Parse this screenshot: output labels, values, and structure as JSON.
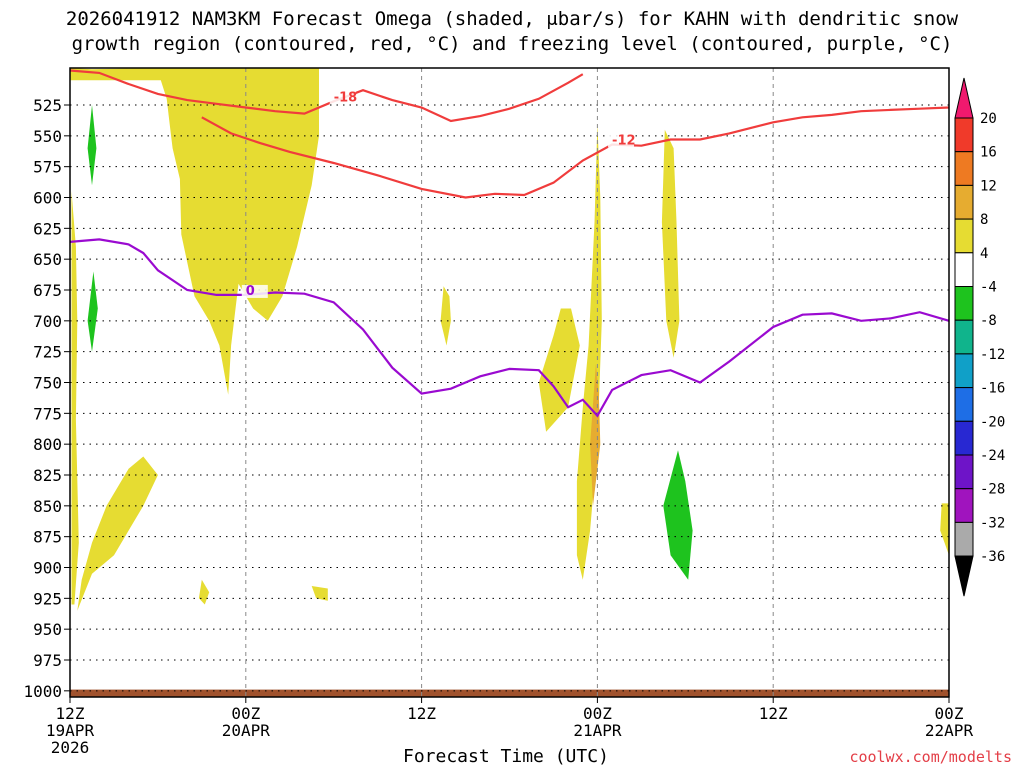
{
  "title_line1": "2026041912 NAM3KM Forecast Omega (shaded, μbar/s) for KAHN with dendritic snow",
  "title_line2": "growth region (contoured, red, °C) and freezing level (contoured, purple, °C)",
  "credit": "coolwx.com/modelts",
  "chart_data": {
    "type": "heatmap",
    "title": "2026041912 NAM3KM Forecast Omega (shaded, μbar/s) for KAHN with dendritic snow growth region (contoured, red, °C) and freezing level (contoured, purple, °C)",
    "xlabel": "Forecast Time (UTC)",
    "ylabel": "",
    "x_range_hours": [
      0,
      60
    ],
    "y_range_hpa": [
      1005,
      495
    ],
    "y_scale": "linear",
    "grid": true,
    "x_ticks": [
      {
        "hour": 0,
        "lines": [
          "12Z",
          "19APR",
          "2026"
        ]
      },
      {
        "hour": 12,
        "lines": [
          "00Z",
          "20APR"
        ]
      },
      {
        "hour": 24,
        "lines": [
          "12Z"
        ]
      },
      {
        "hour": 36,
        "lines": [
          "00Z",
          "21APR"
        ]
      },
      {
        "hour": 48,
        "lines": [
          "12Z"
        ]
      },
      {
        "hour": 60,
        "lines": [
          "00Z",
          "22APR"
        ]
      }
    ],
    "y_ticks": [
      "525",
      "550",
      "575",
      "600",
      "625",
      "650",
      "675",
      "700",
      "725",
      "750",
      "775",
      "800",
      "825",
      "850",
      "875",
      "900",
      "925",
      "950",
      "975",
      "1000"
    ],
    "colorbar": {
      "labels": [
        "20",
        "16",
        "12",
        "8",
        "4",
        "-4",
        "-8",
        "-12",
        "-16",
        "-20",
        "-24",
        "-28",
        "-32",
        "-36"
      ],
      "colors": [
        "#f0196e",
        "#f03a2a",
        "#ee7a22",
        "#e6ac30",
        "#e6dc32",
        "#ffffff",
        "#1ec31e",
        "#10b48c",
        "#10a0c8",
        "#1e6ee6",
        "#2828d2",
        "#6e14c8",
        "#a014be",
        "#aaaaaa",
        "#000000"
      ]
    },
    "omega_colors": {
      "4_to_8": "#e6dc32",
      "8_to_12": "#e6ac30",
      "12_to_16": "#ee7a22",
      "-8_to_-4": "#1ec31e",
      "terrain": "#a0522d"
    },
    "contours": [
      {
        "level": "-18",
        "color": "#f03c3c",
        "label": "-18",
        "points": [
          [
            0,
            497
          ],
          [
            2,
            499
          ],
          [
            4,
            508
          ],
          [
            6,
            516
          ],
          [
            8,
            521
          ],
          [
            10,
            524
          ],
          [
            12,
            527
          ],
          [
            14,
            530
          ],
          [
            16,
            532
          ],
          [
            18,
            522
          ],
          [
            20,
            513
          ],
          [
            22,
            521
          ],
          [
            24,
            527
          ],
          [
            26,
            538
          ],
          [
            28,
            534
          ],
          [
            30,
            528
          ],
          [
            32,
            520
          ],
          [
            34,
            507
          ],
          [
            35,
            500
          ]
        ]
      },
      {
        "level": "-12",
        "color": "#f03c3c",
        "label": "-12",
        "points": [
          [
            9,
            535
          ],
          [
            11,
            548
          ],
          [
            13,
            556
          ],
          [
            15,
            563
          ],
          [
            18,
            572
          ],
          [
            21,
            582
          ],
          [
            24,
            593
          ],
          [
            27,
            600
          ],
          [
            29,
            597
          ],
          [
            31,
            598
          ],
          [
            33,
            588
          ],
          [
            35,
            570
          ],
          [
            37,
            557
          ],
          [
            39,
            558
          ],
          [
            41,
            553
          ],
          [
            43,
            553
          ],
          [
            45,
            548
          ],
          [
            48,
            539
          ],
          [
            50,
            535
          ],
          [
            52,
            533
          ],
          [
            54,
            530
          ],
          [
            56,
            529
          ],
          [
            58,
            528
          ],
          [
            60,
            527
          ]
        ]
      },
      {
        "level": "0",
        "color": "#9a0ad0",
        "label": "0",
        "points": [
          [
            0,
            636
          ],
          [
            2,
            634
          ],
          [
            4,
            638
          ],
          [
            5,
            645
          ],
          [
            6,
            659
          ],
          [
            8,
            675
          ],
          [
            10,
            679
          ],
          [
            12,
            679
          ],
          [
            14,
            677
          ],
          [
            16,
            678
          ],
          [
            18,
            685
          ],
          [
            20,
            707
          ],
          [
            22,
            738
          ],
          [
            24,
            759
          ],
          [
            26,
            755
          ],
          [
            28,
            745
          ],
          [
            30,
            739
          ],
          [
            32,
            740
          ],
          [
            33,
            753
          ],
          [
            34,
            770
          ],
          [
            35,
            764
          ],
          [
            36,
            777
          ],
          [
            37,
            756
          ],
          [
            39,
            744
          ],
          [
            41,
            740
          ],
          [
            43,
            750
          ],
          [
            45,
            733
          ],
          [
            48,
            705
          ],
          [
            50,
            695
          ],
          [
            52,
            694
          ],
          [
            54,
            700
          ],
          [
            56,
            698
          ],
          [
            58,
            693
          ],
          [
            60,
            700
          ]
        ]
      }
    ],
    "omega_regions": [
      {
        "value_range": [
          4,
          8
        ],
        "color": "#e6dc32",
        "points": [
          [
            -0.1,
            495
          ],
          [
            1.5,
            496
          ],
          [
            6,
            495
          ],
          [
            17,
            495
          ],
          [
            17,
            550
          ],
          [
            16.5,
            590
          ],
          [
            15.5,
            640
          ],
          [
            14.5,
            680
          ],
          [
            13.5,
            700
          ],
          [
            12.5,
            690
          ],
          [
            11.5,
            670
          ],
          [
            11,
            720
          ],
          [
            10.8,
            760
          ],
          [
            10.2,
            720
          ],
          [
            9.5,
            700
          ],
          [
            8.5,
            680
          ],
          [
            7.6,
            630
          ],
          [
            7.5,
            585
          ],
          [
            7,
            560
          ],
          [
            6.8,
            540
          ],
          [
            6.6,
            520
          ],
          [
            6.2,
            505
          ],
          [
            -0.1,
            505
          ]
        ]
      },
      {
        "value_range": [
          4,
          8
        ],
        "color": "#e6dc32",
        "points": [
          [
            0.1,
            595
          ],
          [
            0.4,
            640
          ],
          [
            0.5,
            700
          ],
          [
            0.4,
            780
          ],
          [
            0.6,
            880
          ],
          [
            0.3,
            930
          ],
          [
            0.1,
            930
          ]
        ]
      },
      {
        "value_range": [
          4,
          8
        ],
        "color": "#e6dc32",
        "points": [
          [
            0.5,
            935
          ],
          [
            1.5,
            905
          ],
          [
            3,
            890
          ],
          [
            5,
            850
          ],
          [
            6,
            825
          ],
          [
            5,
            810
          ],
          [
            4,
            820
          ],
          [
            2.5,
            850
          ],
          [
            1.5,
            880
          ],
          [
            0.8,
            910
          ]
        ]
      },
      {
        "value_range": [
          4,
          8
        ],
        "color": "#e6dc32",
        "points": [
          [
            36,
            540
          ],
          [
            35.8,
            620
          ],
          [
            35.4,
            720
          ],
          [
            35,
            770
          ],
          [
            34.6,
            830
          ],
          [
            34.6,
            890
          ],
          [
            35,
            910
          ],
          [
            35.5,
            870
          ],
          [
            36,
            800
          ],
          [
            36.3,
            700
          ],
          [
            36.2,
            600
          ]
        ]
      },
      {
        "value_range": [
          4,
          8
        ],
        "color": "#e6dc32",
        "points": [
          [
            33,
            712
          ],
          [
            32,
            750
          ],
          [
            32.5,
            790
          ],
          [
            34,
            770
          ],
          [
            34.8,
            720
          ],
          [
            34.2,
            690
          ],
          [
            33.5,
            690
          ]
        ]
      },
      {
        "value_range": [
          8,
          12
        ],
        "color": "#e6ac30",
        "points": [
          [
            35.9,
            735
          ],
          [
            35.5,
            800
          ],
          [
            35.7,
            850
          ],
          [
            36.2,
            800
          ],
          [
            36.1,
            760
          ]
        ]
      },
      {
        "value_range": [
          4,
          8
        ],
        "color": "#e6dc32",
        "points": [
          [
            40.6,
            545
          ],
          [
            40.4,
            620
          ],
          [
            40.7,
            700
          ],
          [
            41.2,
            730
          ],
          [
            41.6,
            700
          ],
          [
            41.4,
            620
          ],
          [
            41.2,
            560
          ]
        ]
      },
      {
        "value_range": [
          4,
          8
        ],
        "color": "#e6dc32",
        "points": [
          [
            25.5,
            672
          ],
          [
            25.3,
            700
          ],
          [
            25.7,
            720
          ],
          [
            26,
            700
          ],
          [
            25.9,
            680
          ]
        ]
      },
      {
        "value_range": [
          -8,
          -4
        ],
        "color": "#1ec31e",
        "points": [
          [
            1.5,
            525
          ],
          [
            1.2,
            560
          ],
          [
            1.5,
            590
          ],
          [
            1.8,
            560
          ]
        ]
      },
      {
        "value_range": [
          -8,
          -4
        ],
        "color": "#1ec31e",
        "points": [
          [
            1.6,
            660
          ],
          [
            1.2,
            700
          ],
          [
            1.5,
            725
          ],
          [
            1.9,
            690
          ]
        ]
      },
      {
        "value_range": [
          -8,
          -4
        ],
        "color": "#1ec31e",
        "points": [
          [
            41.5,
            805
          ],
          [
            40.5,
            850
          ],
          [
            41,
            890
          ],
          [
            42.2,
            910
          ],
          [
            42.5,
            870
          ],
          [
            42,
            830
          ]
        ]
      },
      {
        "value_range": [
          4,
          8
        ],
        "color": "#e6dc32",
        "points": [
          [
            9,
            910
          ],
          [
            8.8,
            925
          ],
          [
            9.2,
            930
          ],
          [
            9.5,
            920
          ]
        ]
      },
      {
        "value_range": [
          4,
          8
        ],
        "color": "#e6dc32",
        "points": [
          [
            16.5,
            915
          ],
          [
            16.8,
            925
          ],
          [
            17.6,
            927
          ],
          [
            17.6,
            917
          ]
        ]
      },
      {
        "value_range": [
          4,
          8
        ],
        "color": "#e6dc32",
        "points": [
          [
            59.5,
            848
          ],
          [
            59.4,
            870
          ],
          [
            60,
            890
          ],
          [
            60,
            848
          ]
        ]
      }
    ]
  }
}
